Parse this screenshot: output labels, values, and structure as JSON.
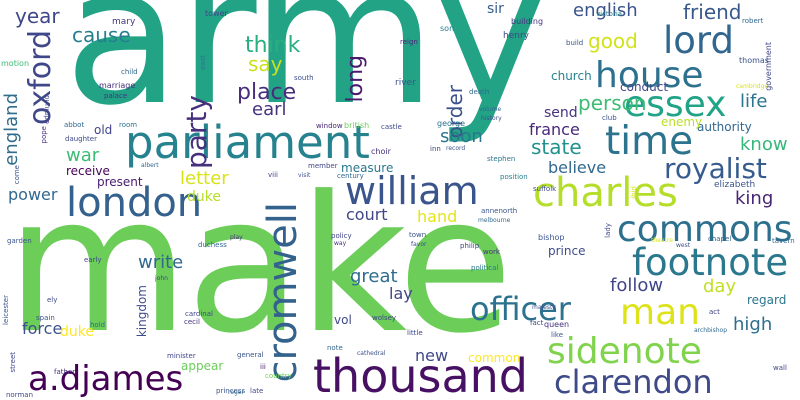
{
  "words": [
    {
      "text": "army",
      "color": "#22a386"
    },
    {
      "text": "make",
      "color": "#6ccd59"
    },
    {
      "text": "parliament",
      "color": "#26828e"
    },
    {
      "text": "thousand",
      "color": "#471063"
    },
    {
      "text": "william",
      "color": "#3a548c"
    },
    {
      "text": "charles",
      "color": "#b5de2b"
    },
    {
      "text": "london",
      "color": "#34618d"
    },
    {
      "text": "commons",
      "color": "#2d708e"
    },
    {
      "text": "cromwell",
      "color": "#33628d"
    },
    {
      "text": "house",
      "color": "#2d718e"
    },
    {
      "text": "time",
      "color": "#2c738e"
    },
    {
      "text": "essex",
      "color": "#20a386"
    },
    {
      "text": "lord",
      "color": "#31668e"
    },
    {
      "text": "footnote",
      "color": "#2a778e"
    },
    {
      "text": "oxford",
      "color": "#3f4788"
    },
    {
      "text": "sidenote",
      "color": "#81d34d"
    },
    {
      "text": "man",
      "color": "#dde318"
    },
    {
      "text": "clarendon",
      "color": "#3e4a89"
    },
    {
      "text": "a.djames",
      "color": "#440154"
    },
    {
      "text": "officer",
      "color": "#2c728e"
    },
    {
      "text": "royalist",
      "color": "#365c8d"
    },
    {
      "text": "party",
      "color": "#46307e"
    },
    {
      "text": "think",
      "color": "#29af7f"
    },
    {
      "text": "year",
      "color": "#3f4788"
    },
    {
      "text": "cause",
      "color": "#277f8e"
    },
    {
      "text": "english",
      "color": "#3a538b"
    },
    {
      "text": "friend",
      "color": "#38598c"
    },
    {
      "text": "good",
      "color": "#d2e21b"
    },
    {
      "text": "say",
      "color": "#cae11f"
    },
    {
      "text": "long",
      "color": "#481b6d"
    },
    {
      "text": "place",
      "color": "#472d7b"
    },
    {
      "text": "earl",
      "color": "#46327e"
    },
    {
      "text": "person",
      "color": "#3dbc74"
    },
    {
      "text": "order",
      "color": "#3b518b"
    },
    {
      "text": "life",
      "color": "#2c738e"
    },
    {
      "text": "england",
      "color": "#2f6c8e"
    },
    {
      "text": "soon",
      "color": "#2b758e"
    },
    {
      "text": "france",
      "color": "#482878"
    },
    {
      "text": "know",
      "color": "#35b779"
    },
    {
      "text": "state",
      "color": "#21918c"
    },
    {
      "text": "war",
      "color": "#3dbc74"
    },
    {
      "text": "believe",
      "color": "#31688e"
    },
    {
      "text": "letter",
      "color": "#d8e219"
    },
    {
      "text": "duke",
      "color": "#b5de2b"
    },
    {
      "text": "power",
      "color": "#31688e"
    },
    {
      "text": "king",
      "color": "#482475"
    },
    {
      "text": "court",
      "color": "#404588"
    },
    {
      "text": "hand",
      "color": "#e5e419"
    },
    {
      "text": "write",
      "color": "#31688e"
    },
    {
      "text": "great",
      "color": "#2f6c8e"
    },
    {
      "text": "day",
      "color": "#c2df23"
    },
    {
      "text": "follow",
      "color": "#404588"
    },
    {
      "text": "lay",
      "color": "#414487"
    },
    {
      "text": "high",
      "color": "#2e6f8e"
    },
    {
      "text": "force",
      "color": "#3b528b"
    },
    {
      "text": "new",
      "color": "#3f4788"
    },
    {
      "text": "duke",
      "color": "#fde725"
    },
    {
      "text": "send",
      "color": "#46337f"
    },
    {
      "text": "receive",
      "color": "#440154"
    },
    {
      "text": "present",
      "color": "#481a6c"
    },
    {
      "text": "authority",
      "color": "#31678e"
    },
    {
      "text": "regard",
      "color": "#2a768e"
    },
    {
      "text": "prince",
      "color": "#3e4c8a"
    },
    {
      "text": "common",
      "color": "#fde725"
    },
    {
      "text": "appear",
      "color": "#6ccd59"
    },
    {
      "text": "measure",
      "color": "#2a778e"
    },
    {
      "text": "kingdom",
      "color": "#3d4d8a"
    },
    {
      "text": "enemy",
      "color": "#bade28"
    },
    {
      "text": "sir",
      "color": "#365d8d"
    },
    {
      "text": "old",
      "color": "#404588"
    },
    {
      "text": "vol",
      "color": "#3f4889"
    },
    {
      "text": "conduct",
      "color": "#3f4788"
    },
    {
      "text": "church",
      "color": "#26828e"
    },
    {
      "text": "elizabeth",
      "color": "#3a548c"
    },
    {
      "text": "mary",
      "color": "#453781"
    },
    {
      "text": "tower",
      "color": "#404588"
    },
    {
      "text": "building",
      "color": "#46337f"
    },
    {
      "text": "victoria",
      "color": "#25848e"
    },
    {
      "text": "robert",
      "color": "#31688e"
    },
    {
      "text": "build",
      "color": "#3a548c"
    },
    {
      "text": "thomas",
      "color": "#3b528b"
    },
    {
      "text": "government",
      "color": "#3f4788"
    },
    {
      "text": "motion",
      "color": "#3dbc74"
    },
    {
      "text": "child",
      "color": "#31688e"
    },
    {
      "text": "east",
      "color": "#2a778e"
    },
    {
      "text": "marriage",
      "color": "#46307e"
    },
    {
      "text": "palace",
      "color": "#46327e"
    },
    {
      "text": "south",
      "color": "#3b518b"
    },
    {
      "text": "river",
      "color": "#3a548c"
    },
    {
      "text": "reign",
      "color": "#482878"
    },
    {
      "text": "son",
      "color": "#287d8e"
    },
    {
      "text": "henry",
      "color": "#404588"
    },
    {
      "text": "death",
      "color": "#31688e"
    },
    {
      "text": "castle",
      "color": "#3f4788"
    },
    {
      "text": "window",
      "color": "#482475"
    },
    {
      "text": "british",
      "color": "#6ccd59"
    },
    {
      "text": "george",
      "color": "#2d708e"
    },
    {
      "text": "club",
      "color": "#3b528b"
    },
    {
      "text": "abbot",
      "color": "#31688e"
    },
    {
      "text": "room",
      "color": "#2c728e"
    },
    {
      "text": "edmund",
      "color": "#404588"
    },
    {
      "text": "daughter",
      "color": "#3e4a89"
    },
    {
      "text": "pope",
      "color": "#46307e"
    },
    {
      "text": "albert",
      "color": "#31688e"
    },
    {
      "text": "choir",
      "color": "#46327e"
    },
    {
      "text": "record",
      "color": "#3a548c"
    },
    {
      "text": "stephen",
      "color": "#2a778e"
    },
    {
      "text": "member",
      "color": "#3f4788"
    },
    {
      "text": "century",
      "color": "#31688e"
    },
    {
      "text": "visit",
      "color": "#3b528b"
    },
    {
      "text": "viii",
      "color": "#404588"
    },
    {
      "text": "position",
      "color": "#26828e"
    },
    {
      "text": "suffolk",
      "color": "#3e4a89"
    },
    {
      "text": "ibid",
      "color": "#d8e219"
    },
    {
      "text": "annenorth",
      "color": "#3a548c"
    },
    {
      "text": "melbourne",
      "color": "#31688e"
    },
    {
      "text": "town",
      "color": "#3b528b"
    },
    {
      "text": "favor",
      "color": "#3e4c8a"
    },
    {
      "text": "policy",
      "color": "#404588"
    },
    {
      "text": "way",
      "color": "#46307e"
    },
    {
      "text": "philip",
      "color": "#3f4788"
    },
    {
      "text": "political",
      "color": "#2a778e"
    },
    {
      "text": "work",
      "color": "#46327e"
    },
    {
      "text": "bishop",
      "color": "#3a548c"
    },
    {
      "text": "chapel",
      "color": "#31688e"
    },
    {
      "text": "west",
      "color": "#3b528b"
    },
    {
      "text": "tavern",
      "color": "#31688e"
    },
    {
      "text": "theatre",
      "color": "#d8e219"
    },
    {
      "text": "early",
      "color": "#3f4788"
    },
    {
      "text": "john",
      "color": "#404588"
    },
    {
      "text": "ely",
      "color": "#3e4a89"
    },
    {
      "text": "spain",
      "color": "#3a548c"
    },
    {
      "text": "leicester",
      "color": "#3b528b"
    },
    {
      "text": "hold",
      "color": "#31688e"
    },
    {
      "text": "cecil",
      "color": "#46327e"
    },
    {
      "text": "cardinal",
      "color": "#3f4788"
    },
    {
      "text": "minister",
      "color": "#404588"
    },
    {
      "text": "general",
      "color": "#3a548c"
    },
    {
      "text": "iii",
      "color": "#482878"
    },
    {
      "text": "country",
      "color": "#6ccd59"
    },
    {
      "text": "note",
      "color": "#31688e"
    },
    {
      "text": "cathedral",
      "color": "#3b528b"
    },
    {
      "text": "wolsey",
      "color": "#404588"
    },
    {
      "text": "little",
      "color": "#3f4788"
    },
    {
      "text": "fact",
      "color": "#3e4a89"
    },
    {
      "text": "majesty",
      "color": "#3a548c"
    },
    {
      "text": "queen",
      "color": "#46327e"
    },
    {
      "text": "like",
      "color": "#3b528b"
    },
    {
      "text": "act",
      "color": "#404588"
    },
    {
      "text": "archbishop",
      "color": "#31688e"
    },
    {
      "text": "street",
      "color": "#3f4788"
    },
    {
      "text": "father",
      "color": "#46307e"
    },
    {
      "text": "norman",
      "color": "#3e4a89"
    },
    {
      "text": "princess",
      "color": "#3a548c"
    },
    {
      "text": "roger",
      "color": "#31688e"
    },
    {
      "text": "late",
      "color": "#404588"
    },
    {
      "text": "wall",
      "color": "#3f4788"
    },
    {
      "text": "garden",
      "color": "#3b528b"
    },
    {
      "text": "duchess",
      "color": "#31688e"
    },
    {
      "text": "play",
      "color": "#46327e"
    },
    {
      "text": "come",
      "color": "#3a548c"
    },
    {
      "text": "lady",
      "color": "#3e4a89"
    },
    {
      "text": "cambridge",
      "color": "#d8e219"
    },
    {
      "text": "inn",
      "color": "#404588"
    },
    {
      "text": "volume",
      "color": "#31688e"
    },
    {
      "text": "history",
      "color": "#3b528b"
    }
  ]
}
